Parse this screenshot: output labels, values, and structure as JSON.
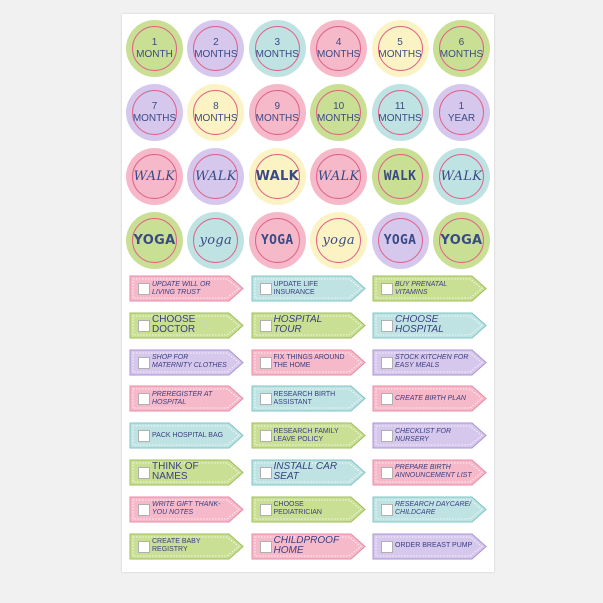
{
  "circles": [
    [
      {
        "lines": [
          "1",
          "MONTH"
        ],
        "bg": "#c9df94",
        "ring": "#e0618a"
      },
      {
        "lines": [
          "2",
          "MONTHS"
        ],
        "bg": "#d6c7ec",
        "ring": "#e0618a"
      },
      {
        "lines": [
          "3",
          "MONTHS"
        ],
        "bg": "#bfe3e3",
        "ring": "#e0618a"
      },
      {
        "lines": [
          "4",
          "MONTHS"
        ],
        "bg": "#f6b9c9",
        "ring": "#e0618a"
      },
      {
        "lines": [
          "5",
          "MONTHS"
        ],
        "bg": "#fcf3c4",
        "ring": "#e0618a"
      },
      {
        "lines": [
          "6",
          "MONTHS"
        ],
        "bg": "#c9df94",
        "ring": "#e0618a"
      }
    ],
    [
      {
        "lines": [
          "7",
          "MONTHS"
        ],
        "bg": "#d6c7ec",
        "ring": "#e0618a"
      },
      {
        "lines": [
          "8",
          "MONTHS"
        ],
        "bg": "#fcf3c4",
        "ring": "#e0618a"
      },
      {
        "lines": [
          "9",
          "MONTHS"
        ],
        "bg": "#f6b9c9",
        "ring": "#e0618a"
      },
      {
        "lines": [
          "10",
          "MONTHS"
        ],
        "bg": "#c9df94",
        "ring": "#e0618a"
      },
      {
        "lines": [
          "11",
          "MONTHS"
        ],
        "bg": "#bfe3e3",
        "ring": "#e0618a"
      },
      {
        "lines": [
          "1",
          "YEAR"
        ],
        "bg": "#d6c7ec",
        "ring": "#e0618a"
      }
    ],
    [
      {
        "lines": [
          "WALK"
        ],
        "bg": "#f6b9c9",
        "ring": "#e0618a",
        "style": "w2"
      },
      {
        "lines": [
          "WALK"
        ],
        "bg": "#d6c7ec",
        "ring": "#e0618a",
        "style": "w2"
      },
      {
        "lines": [
          "WALK"
        ],
        "bg": "#fcf3c4",
        "ring": "#e0618a",
        "style": "w1"
      },
      {
        "lines": [
          "WALK"
        ],
        "bg": "#f6b9c9",
        "ring": "#e0618a",
        "style": "w2"
      },
      {
        "lines": [
          "WALK"
        ],
        "bg": "#c9df94",
        "ring": "#e0618a",
        "style": "w3"
      },
      {
        "lines": [
          "WALK"
        ],
        "bg": "#bfe3e3",
        "ring": "#e0618a",
        "style": "w2"
      }
    ],
    [
      {
        "lines": [
          "YOGA"
        ],
        "bg": "#c9df94",
        "ring": "#e0618a",
        "style": "w1"
      },
      {
        "lines": [
          "yoga"
        ],
        "bg": "#bfe3e3",
        "ring": "#e0618a",
        "style": "w2"
      },
      {
        "lines": [
          "YOGA"
        ],
        "bg": "#f6b9c9",
        "ring": "#e0618a",
        "style": "w3"
      },
      {
        "lines": [
          "yoga"
        ],
        "bg": "#fcf3c4",
        "ring": "#e0618a",
        "style": "w2"
      },
      {
        "lines": [
          "YOGA"
        ],
        "bg": "#d6c7ec",
        "ring": "#e0618a",
        "style": "w3"
      },
      {
        "lines": [
          "YOGA"
        ],
        "bg": "#c9df94",
        "ring": "#e0618a",
        "style": "w1"
      }
    ]
  ],
  "flags": [
    [
      {
        "text": "UPDATE WILL OR LIVING TRUST",
        "fill": "#f6b9c9",
        "style": "script"
      },
      {
        "text": "UPDATE LIFE INSURANCE",
        "fill": "#bfe3e3",
        "style": ""
      },
      {
        "text": "BUY PRENATAL VITAMINS",
        "fill": "#c9df94",
        "style": "script"
      }
    ],
    [
      {
        "text": "CHOOSE DOCTOR",
        "fill": "#c9df94",
        "style": "big"
      },
      {
        "text": "HOSPITAL TOUR",
        "fill": "#c9df94",
        "style": "big script"
      },
      {
        "text": "CHOOSE HOSPITAL",
        "fill": "#bfe3e3",
        "style": "big script"
      }
    ],
    [
      {
        "text": "SHOP FOR MATERNITY CLOTHES",
        "fill": "#d6c7ec",
        "style": "script"
      },
      {
        "text": "FIX THINGS AROUND THE HOME",
        "fill": "#f6b9c9",
        "style": ""
      },
      {
        "text": "STOCK KITCHEN FOR EASY MEALS",
        "fill": "#d6c7ec",
        "style": "script"
      }
    ],
    [
      {
        "text": "PREREGISTER AT HOSPITAL",
        "fill": "#f6b9c9",
        "style": "script"
      },
      {
        "text": "RESEARCH BIRTH ASSISTANT",
        "fill": "#bfe3e3",
        "style": ""
      },
      {
        "text": "CREATE BIRTH PLAN",
        "fill": "#f6b9c9",
        "style": "script"
      }
    ],
    [
      {
        "text": "PACK HOSPITAL BAG",
        "fill": "#bfe3e3",
        "style": ""
      },
      {
        "text": "RESEARCH FAMILY LEAVE POLICY",
        "fill": "#c9df94",
        "style": ""
      },
      {
        "text": "CHECKLIST FOR NURSERY",
        "fill": "#d6c7ec",
        "style": "script"
      }
    ],
    [
      {
        "text": "THINK OF NAMES",
        "fill": "#c9df94",
        "style": "big"
      },
      {
        "text": "INSTALL CAR SEAT",
        "fill": "#bfe3e3",
        "style": "big script"
      },
      {
        "text": "PREPARE BIRTH ANNOUNCEMENT LIST",
        "fill": "#f6b9c9",
        "style": "script"
      }
    ],
    [
      {
        "text": "WRITE GIFT THANK-YOU NOTES",
        "fill": "#f6b9c9",
        "style": "script"
      },
      {
        "text": "CHOOSE PEDIATRICIAN",
        "fill": "#c9df94",
        "style": ""
      },
      {
        "text": "RESEARCH DAYCARE/ CHILDCARE",
        "fill": "#bfe3e3",
        "style": "script"
      }
    ],
    [
      {
        "text": "CREATE BABY REGISTRY",
        "fill": "#c9df94",
        "style": ""
      },
      {
        "text": "CHILDPROOF HOME",
        "fill": "#f6b9c9",
        "style": "big script"
      },
      {
        "text": "ORDER BREAST PUMP",
        "fill": "#d6c7ec",
        "style": ""
      }
    ]
  ]
}
